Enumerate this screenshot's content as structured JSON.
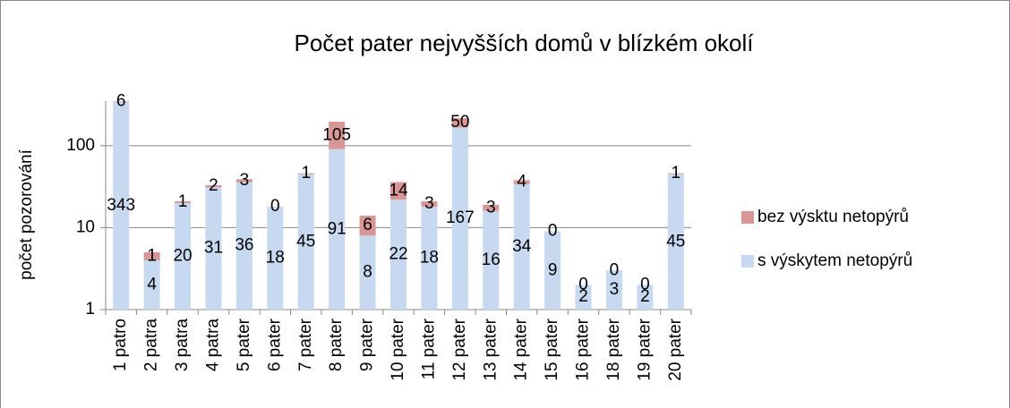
{
  "chart_data": {
    "type": "bar",
    "stacked": true,
    "log_scale": true,
    "title": "Počet pater nejvyšších domů v blízkém okolí",
    "y_label": "počet pozorování",
    "categories": [
      "1 patro",
      "2 patra",
      "3 patra",
      "4 patra",
      "5 pater",
      "6 pater",
      "7 pater",
      "8 pater",
      "9 pater",
      "10 pater",
      "11 pater",
      "12 pater",
      "13 pater",
      "14 pater",
      "15 pater",
      "16 pater",
      "18 pater",
      "19 pater",
      "20 pater"
    ],
    "series": [
      {
        "name": "s výskytem netopýrů",
        "color": "#c6d9f1",
        "values": [
          343,
          4,
          20,
          31,
          36,
          18,
          45,
          91,
          8,
          22,
          18,
          167,
          16,
          34,
          9,
          2,
          3,
          2,
          45
        ]
      },
      {
        "name": "bez výsktu netopýrů",
        "color": "#d99694",
        "values": [
          6,
          1,
          1,
          2,
          3,
          0,
          1,
          105,
          6,
          14,
          3,
          50,
          3,
          4,
          0,
          0,
          0,
          0,
          1
        ]
      }
    ],
    "ylim": [
      1,
      350
    ],
    "yticks": [
      1,
      10,
      100
    ],
    "grid": true,
    "legend": "right"
  }
}
